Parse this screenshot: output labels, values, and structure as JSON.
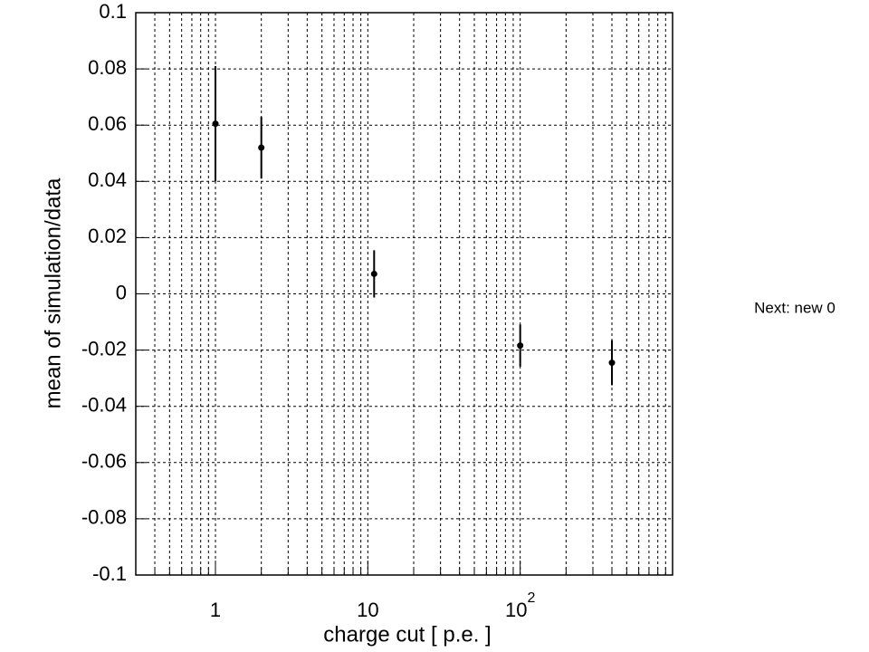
{
  "chart_data": {
    "type": "scatter",
    "x_label": "charge cut [ p.e. ]",
    "y_label": "mean of simulation/data",
    "annotation": "Next: new 0",
    "x": [
      1,
      2,
      11,
      100,
      400
    ],
    "values": [
      0.0605,
      0.052,
      0.0071,
      -0.0184,
      -0.0245
    ],
    "errors": [
      0.0205,
      0.011,
      0.0084,
      0.0075,
      0.008
    ],
    "color": "#000000",
    "xscale": "log",
    "xlim": [
      0.3,
      1000
    ],
    "xticks": [
      1,
      10,
      {
        "value": 100,
        "label": "10",
        "exponent": "2"
      }
    ],
    "xminorticks": [
      0.4,
      0.5,
      0.6,
      0.7,
      0.8,
      0.9,
      2,
      3,
      4,
      5,
      6,
      7,
      8,
      9,
      20,
      30,
      40,
      50,
      60,
      70,
      80,
      90,
      200,
      300,
      400,
      500,
      600,
      700,
      800,
      900
    ],
    "ylim": [
      -0.1,
      0.1
    ],
    "yticks": [
      -0.1,
      -0.08,
      -0.06,
      -0.04,
      -0.02,
      0,
      0.02,
      0.04,
      0.06,
      0.08,
      0.1
    ],
    "grid": true
  }
}
